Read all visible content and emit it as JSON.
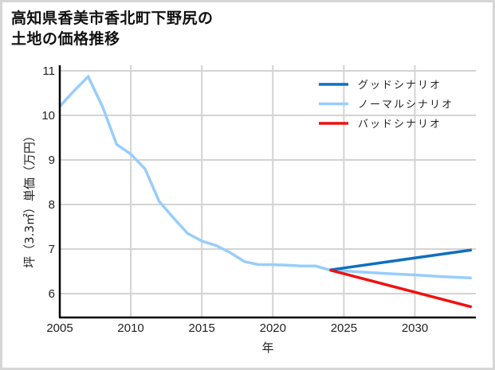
{
  "title": {
    "line1": "高知県香美市香北町下野尻の",
    "line2": "土地の価格推移"
  },
  "chart_data": {
    "type": "line",
    "title": "高知県香美市香北町下野尻の土地の価格推移",
    "xlabel": "年",
    "ylabel": "坪（3.3㎡）単価（万円）",
    "xlim": [
      2005,
      2034
    ],
    "ylim": [
      5.45,
      11.1
    ],
    "x_ticks": [
      2005,
      2010,
      2015,
      2020,
      2025,
      2030
    ],
    "y_ticks": [
      6,
      7,
      8,
      9,
      10,
      11
    ],
    "grid": true,
    "legend_position": "upper right",
    "series": [
      {
        "name": "グッドシナリオ",
        "color": "#0e6fc1",
        "x": [
          2024,
          2034
        ],
        "values": [
          6.53,
          6.98
        ]
      },
      {
        "name": "ノーマルシナリオ",
        "color": "#98cdfa",
        "x": [
          2005,
          2006,
          2007,
          2008,
          2009,
          2010,
          2011,
          2012,
          2013,
          2014,
          2015,
          2016,
          2017,
          2018,
          2019,
          2020,
          2021,
          2022,
          2023,
          2024,
          2026,
          2028,
          2030,
          2032,
          2034
        ],
        "values": [
          10.2,
          10.55,
          10.87,
          10.2,
          9.35,
          9.13,
          8.8,
          8.07,
          7.7,
          7.35,
          7.18,
          7.08,
          6.92,
          6.72,
          6.65,
          6.65,
          6.64,
          6.62,
          6.62,
          6.53,
          6.49,
          6.45,
          6.42,
          6.38,
          6.35
        ]
      },
      {
        "name": "バッドシナリオ",
        "color": "#f01010",
        "x": [
          2024,
          2034
        ],
        "values": [
          6.53,
          5.7
        ]
      }
    ]
  },
  "axes": {
    "x_tick_labels": [
      "2005",
      "2010",
      "2015",
      "2020",
      "2025",
      "2030"
    ],
    "y_tick_labels": [
      "6",
      "7",
      "8",
      "9",
      "10",
      "11"
    ],
    "xlabel": "年",
    "ylabel": "坪（3.3㎡）単価（万円）"
  },
  "legend": {
    "items": [
      {
        "label": "グッドシナリオ",
        "color": "#0e6fc1"
      },
      {
        "label": "ノーマルシナリオ",
        "color": "#98cdfa"
      },
      {
        "label": "バッドシナリオ",
        "color": "#f01010"
      }
    ]
  }
}
